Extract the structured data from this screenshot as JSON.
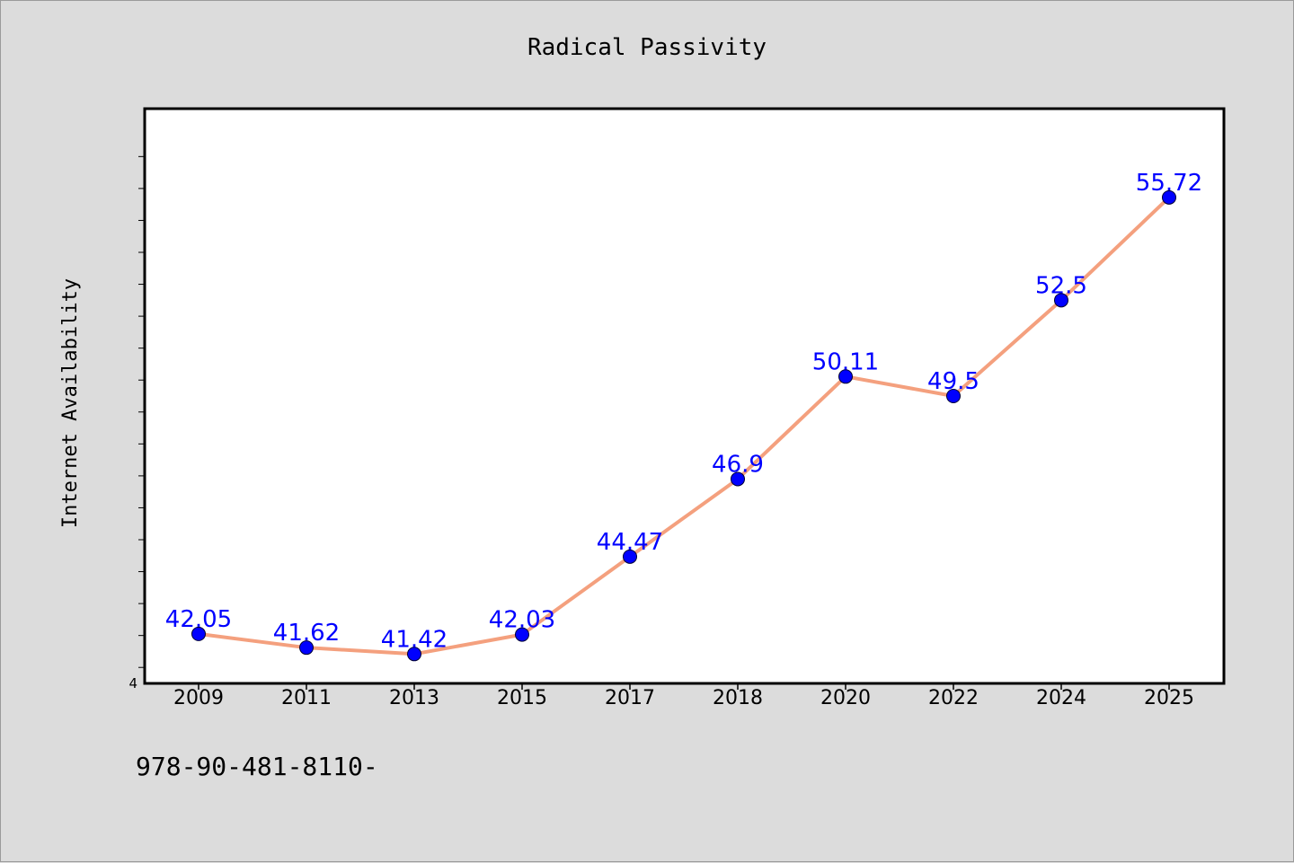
{
  "chart_data": {
    "type": "line",
    "title": "Radical Passivity",
    "xlabel": "",
    "ylabel": "Internet Availability",
    "categories": [
      "2009",
      "2011",
      "2013",
      "2015",
      "2017",
      "2018",
      "2020",
      "2022",
      "2024",
      "2025"
    ],
    "series": [
      {
        "values": [
          42.05,
          41.62,
          41.42,
          42.03,
          44.47,
          46.9,
          50.11,
          49.5,
          52.5,
          55.72
        ],
        "labels": [
          "42.05",
          "41.62",
          "41.42",
          "42.03",
          "44.47",
          "46.9",
          "50.11",
          "49.5",
          "52.5",
          "55.72"
        ]
      }
    ],
    "ylim": [
      40.5,
      58.5
    ],
    "ytick_labels": [
      {
        "value": 40.5,
        "label": "4"
      }
    ],
    "grid": false,
    "line_color": "#f4a07e",
    "marker_color": "#0000ff",
    "label_color": "#0000ff"
  },
  "footnote": "978-90-481-8110-"
}
